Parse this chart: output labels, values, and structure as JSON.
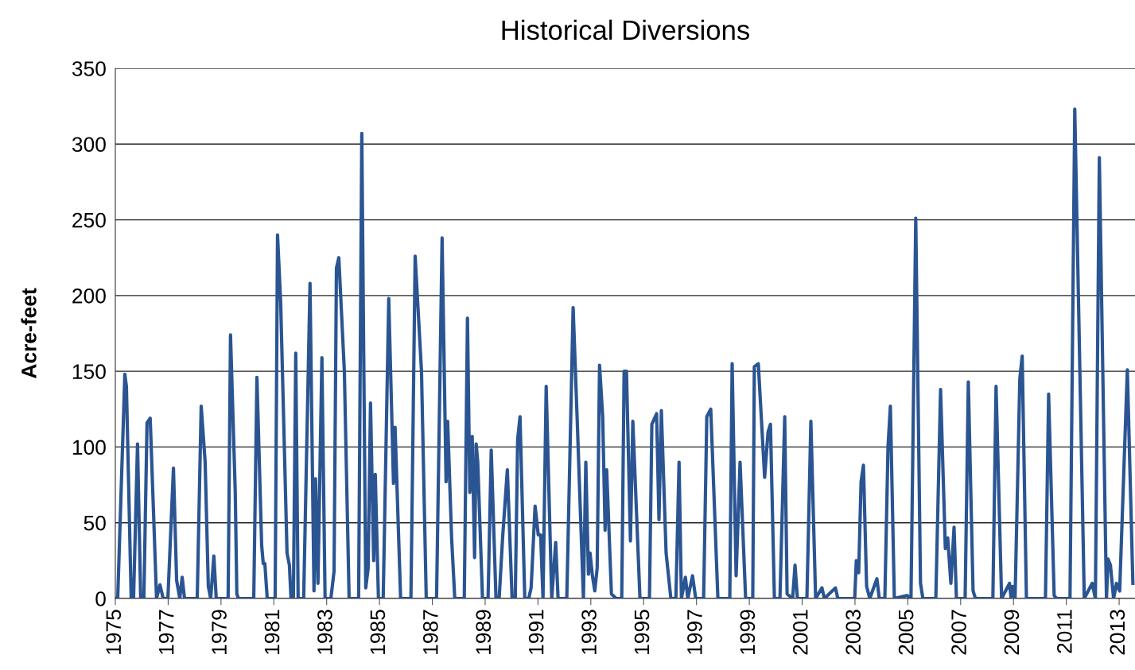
{
  "chart_data": {
    "type": "line",
    "title": "Historical Diversions",
    "ylabel": "Acre-feet",
    "xlim": [
      1975,
      2013.6
    ],
    "xticks": [
      1975,
      1977,
      1979,
      1981,
      1983,
      1985,
      1987,
      1989,
      1991,
      1993,
      1995,
      1997,
      1999,
      2001,
      2003,
      2005,
      2007,
      2009,
      2011,
      2013
    ],
    "ylim": [
      0,
      350
    ],
    "yticks": [
      0,
      50,
      100,
      150,
      200,
      250,
      300,
      350
    ],
    "grid": "y",
    "marker": "none",
    "line_style": "solid",
    "series": [
      {
        "color": "#2b5592",
        "x": [
          1975.0,
          1975.09,
          1975.36,
          1975.42,
          1975.6,
          1975.69,
          1975.84,
          1975.96,
          1976.08,
          1976.2,
          1976.32,
          1976.56,
          1976.69,
          1976.81,
          1976.99,
          1977.2,
          1977.32,
          1977.44,
          1977.53,
          1977.62,
          1978.1,
          1978.25,
          1978.4,
          1978.52,
          1978.61,
          1978.73,
          1978.82,
          1979.27,
          1979.36,
          1979.54,
          1979.6,
          1979.66,
          1980.24,
          1980.36,
          1980.54,
          1980.6,
          1980.66,
          1980.75,
          1981.05,
          1981.14,
          1981.26,
          1981.5,
          1981.59,
          1981.65,
          1981.74,
          1981.83,
          1981.92,
          1982.13,
          1982.37,
          1982.52,
          1982.58,
          1982.67,
          1982.82,
          1982.94,
          1983.16,
          1983.28,
          1983.37,
          1983.46,
          1983.67,
          1983.85,
          1984.21,
          1984.33,
          1984.48,
          1984.57,
          1984.66,
          1984.78,
          1984.84,
          1984.96,
          1985.14,
          1985.35,
          1985.53,
          1985.59,
          1985.8,
          1986.19,
          1986.35,
          1986.59,
          1986.77,
          1987.16,
          1987.37,
          1987.52,
          1987.58,
          1987.73,
          1987.85,
          1988.21,
          1988.33,
          1988.42,
          1988.51,
          1988.6,
          1988.66,
          1988.72,
          1988.9,
          1989.11,
          1989.23,
          1989.41,
          1989.53,
          1989.66,
          1989.84,
          1990.02,
          1990.14,
          1990.23,
          1990.32,
          1990.5,
          1990.65,
          1990.74,
          1990.89,
          1991.01,
          1991.1,
          1991.19,
          1991.31,
          1991.52,
          1991.67,
          1991.76,
          1992.09,
          1992.33,
          1992.48,
          1992.72,
          1992.81,
          1992.91,
          1992.97,
          1993.06,
          1993.15,
          1993.24,
          1993.33,
          1993.45,
          1993.54,
          1993.6,
          1993.78,
          1993.96,
          1994.17,
          1994.26,
          1994.35,
          1994.5,
          1994.59,
          1994.86,
          1995.22,
          1995.31,
          1995.49,
          1995.58,
          1995.67,
          1995.85,
          1996.03,
          1996.22,
          1996.34,
          1996.43,
          1996.58,
          1996.67,
          1996.85,
          1996.97,
          1997.27,
          1997.39,
          1997.54,
          1997.81,
          1998.26,
          1998.35,
          1998.5,
          1998.65,
          1998.86,
          1999.13,
          1999.19,
          1999.34,
          1999.58,
          1999.71,
          1999.8,
          1999.95,
          2000.16,
          2000.34,
          2000.43,
          2000.64,
          2000.73,
          2000.82,
          2001.18,
          2001.33,
          2001.51,
          2001.75,
          2001.84,
          2002.26,
          2002.35,
          2002.99,
          2003.05,
          2003.14,
          2003.23,
          2003.32,
          2003.44,
          2003.56,
          2003.83,
          2003.92,
          2004.13,
          2004.25,
          2004.34,
          2004.49,
          2004.97,
          2005.12,
          2005.3,
          2005.48,
          2005.57,
          2006.06,
          2006.24,
          2006.42,
          2006.51,
          2006.63,
          2006.75,
          2006.84,
          2007.17,
          2007.29,
          2007.47,
          2007.56,
          2008.22,
          2008.34,
          2008.55,
          2008.85,
          2008.91,
          2008.97,
          2009.06,
          2009.24,
          2009.33,
          2009.49,
          2010.21,
          2010.33,
          2010.54,
          2010.63,
          2011.14,
          2011.32,
          2011.68,
          2011.98,
          2012.1,
          2012.25,
          2012.52,
          2012.58,
          2012.67,
          2012.79,
          2012.9,
          2013.02,
          2013.31,
          2013.52
        ],
        "values": [
          0,
          0,
          148,
          140,
          0,
          0,
          102,
          0,
          0,
          116,
          119,
          0,
          9,
          0,
          0,
          86,
          12,
          0,
          14,
          0,
          0,
          127,
          90,
          8,
          0,
          28,
          0,
          0,
          174,
          70,
          3,
          0,
          0,
          146,
          35,
          23,
          23,
          0,
          0,
          240,
          195,
          30,
          22,
          0,
          0,
          162,
          0,
          0,
          208,
          5,
          79,
          10,
          159,
          0,
          0,
          18,
          218,
          225,
          150,
          0,
          0,
          307,
          7,
          20,
          129,
          25,
          82,
          0,
          0,
          198,
          76,
          113,
          0,
          0,
          226,
          150,
          0,
          0,
          238,
          77,
          117,
          40,
          0,
          0,
          185,
          70,
          107,
          27,
          102,
          90,
          0,
          0,
          98,
          0,
          0,
          40,
          85,
          0,
          0,
          105,
          120,
          0,
          0,
          7,
          61,
          42,
          42,
          0,
          140,
          0,
          37,
          0,
          0,
          192,
          120,
          0,
          90,
          16,
          30,
          15,
          5,
          20,
          154,
          120,
          45,
          85,
          3,
          0,
          0,
          150,
          150,
          38,
          117,
          0,
          0,
          115,
          122,
          52,
          124,
          30,
          0,
          0,
          90,
          0,
          14,
          0,
          15,
          0,
          0,
          120,
          125,
          0,
          0,
          155,
          15,
          90,
          0,
          0,
          153,
          155,
          80,
          110,
          115,
          0,
          0,
          120,
          3,
          0,
          22,
          0,
          0,
          117,
          0,
          7,
          0,
          7,
          0,
          0,
          25,
          17,
          77,
          88,
          8,
          0,
          13,
          0,
          0,
          100,
          127,
          0,
          2,
          0,
          251,
          10,
          0,
          0,
          138,
          33,
          40,
          10,
          47,
          0,
          0,
          143,
          5,
          0,
          0,
          140,
          0,
          10,
          0,
          8,
          0,
          145,
          160,
          0,
          0,
          135,
          2,
          0,
          0,
          323,
          0,
          10,
          0,
          291,
          0,
          26,
          22,
          0,
          10,
          5,
          151,
          10
        ]
      }
    ]
  }
}
